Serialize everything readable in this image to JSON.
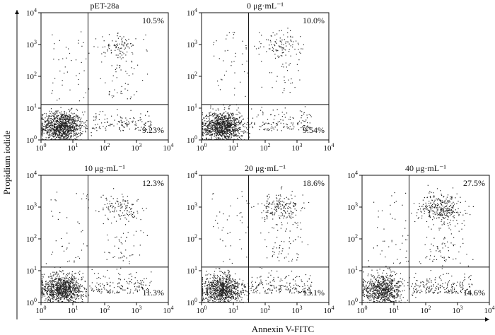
{
  "figure": {
    "xlabel": "Annexin V-FITC",
    "ylabel": "Propidium iodide"
  },
  "chart_data": [
    {
      "type": "scatter",
      "title": "pET-28a",
      "q_upper_right": "10.5%",
      "q_lower_right": "9.23%",
      "axis_scale": "log",
      "xlim": [
        1,
        10000
      ],
      "ylim": [
        1,
        10000
      ],
      "gate_x": 30,
      "gate_y": 13,
      "xticks": [
        "10^0",
        "10^1",
        "10^2",
        "10^3",
        "10^4"
      ],
      "yticks": [
        "10^0",
        "10^1",
        "10^2",
        "10^3",
        "10^4"
      ],
      "xlabel": "Annexin V-FITC",
      "ylabel": "Propidium iodide",
      "ur_frac": 0.105,
      "lr_frac": 0.0923
    },
    {
      "type": "scatter",
      "title": "0 μg·mL⁻¹",
      "q_upper_right": "10.0%",
      "q_lower_right": "9.54%",
      "axis_scale": "log",
      "xlim": [
        1,
        10000
      ],
      "ylim": [
        1,
        10000
      ],
      "gate_x": 30,
      "gate_y": 13,
      "xticks": [
        "10^0",
        "10^1",
        "10^2",
        "10^3",
        "10^4"
      ],
      "yticks": [
        "10^0",
        "10^1",
        "10^2",
        "10^3",
        "10^4"
      ],
      "xlabel": "Annexin V-FITC",
      "ylabel": "Propidium iodide",
      "ur_frac": 0.1,
      "lr_frac": 0.0954
    },
    {
      "type": "scatter",
      "title": "10 μg·mL⁻¹",
      "q_upper_right": "12.3%",
      "q_lower_right": "11.3%",
      "axis_scale": "log",
      "xlim": [
        1,
        10000
      ],
      "ylim": [
        1,
        10000
      ],
      "gate_x": 30,
      "gate_y": 13,
      "xticks": [
        "10^0",
        "10^1",
        "10^2",
        "10^3",
        "10^4"
      ],
      "yticks": [
        "10^0",
        "10^1",
        "10^2",
        "10^3",
        "10^4"
      ],
      "xlabel": "Annexin V-FITC",
      "ylabel": "Propidium iodide",
      "ur_frac": 0.123,
      "lr_frac": 0.113
    },
    {
      "type": "scatter",
      "title": "20 μg·mL⁻¹",
      "q_upper_right": "18.6%",
      "q_lower_right": "13.1%",
      "axis_scale": "log",
      "xlim": [
        1,
        10000
      ],
      "ylim": [
        1,
        10000
      ],
      "gate_x": 30,
      "gate_y": 13,
      "xticks": [
        "10^0",
        "10^1",
        "10^2",
        "10^3",
        "10^4"
      ],
      "yticks": [
        "10^0",
        "10^1",
        "10^2",
        "10^3",
        "10^4"
      ],
      "xlabel": "Annexin V-FITC",
      "ylabel": "Propidium iodide",
      "ur_frac": 0.186,
      "lr_frac": 0.131
    },
    {
      "type": "scatter",
      "title": "40 μg·mL⁻¹",
      "q_upper_right": "27.5%",
      "q_lower_right": "14.6%",
      "axis_scale": "log",
      "xlim": [
        1,
        10000
      ],
      "ylim": [
        1,
        10000
      ],
      "gate_x": 30,
      "gate_y": 13,
      "xticks": [
        "10^0",
        "10^1",
        "10^2",
        "10^3",
        "10^4"
      ],
      "yticks": [
        "10^0",
        "10^1",
        "10^2",
        "10^3",
        "10^4"
      ],
      "xlabel": "Annexin V-FITC",
      "ylabel": "Propidium iodide",
      "ur_frac": 0.275,
      "lr_frac": 0.146
    }
  ]
}
